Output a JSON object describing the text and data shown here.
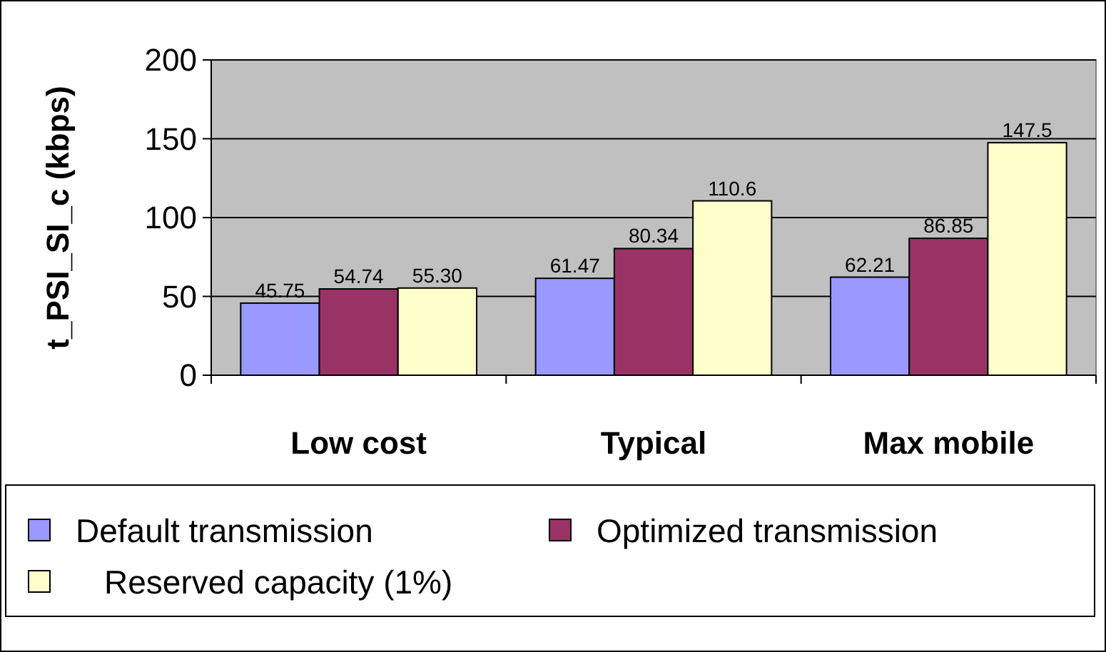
{
  "chart_data": {
    "type": "bar",
    "ylabel": "t_PSI_SI_c (kbps)",
    "categories": [
      "Low cost",
      "Typical",
      "Max mobile"
    ],
    "series": [
      {
        "name": "Default transmission",
        "color": "#9999ff",
        "values": [
          45.75,
          61.47,
          62.21
        ],
        "value_labels": [
          "45.75",
          "61.47",
          "62.21"
        ]
      },
      {
        "name": "Optimized transmission",
        "color": "#993366",
        "values": [
          54.74,
          80.34,
          86.85
        ],
        "value_labels": [
          "54.74",
          "80.34",
          "86.85"
        ]
      },
      {
        "name": "Reserved capacity (1%)",
        "color": "#ffffcc",
        "values": [
          55.3,
          110.6,
          147.5
        ],
        "value_labels": [
          "55.30",
          "110.6",
          "147.5"
        ]
      }
    ],
    "ylim": [
      0,
      200
    ],
    "yticks": [
      0,
      50,
      100,
      150,
      200
    ],
    "grid": "y",
    "legend": "bottom"
  }
}
